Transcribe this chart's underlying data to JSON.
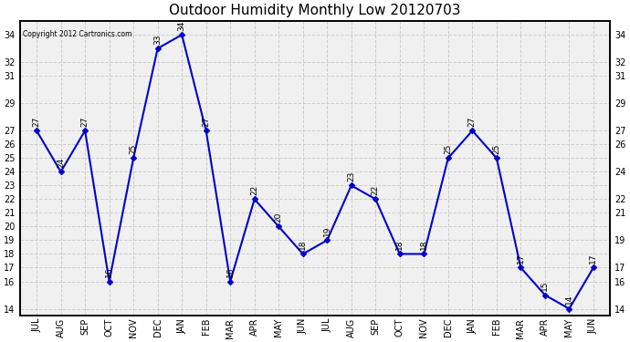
{
  "title": "Outdoor Humidity Monthly Low 20120703",
  "copyright": "Copyright 2012 Cartronics.com",
  "categories": [
    "JUL",
    "AUG",
    "SEP",
    "OCT",
    "NOV",
    "DEC",
    "JAN",
    "FEB",
    "MAR",
    "APR",
    "MAY",
    "JUN",
    "JUL",
    "AUG",
    "SEP",
    "OCT",
    "NOV",
    "DEC",
    "JAN",
    "FEB",
    "MAR",
    "APR",
    "MAY",
    "JUN"
  ],
  "values": [
    27,
    24,
    27,
    16,
    25,
    33,
    34,
    27,
    16,
    22,
    20,
    18,
    19,
    23,
    22,
    18,
    18,
    25,
    27,
    25,
    17,
    15,
    14,
    17
  ],
  "ylim": [
    13.5,
    35.0
  ],
  "yticks_left": [
    14,
    16,
    17,
    18,
    19,
    20,
    21,
    22,
    23,
    24,
    25,
    26,
    27,
    29,
    31,
    32,
    34
  ],
  "yticks_right": [
    14,
    16,
    17,
    19,
    21,
    22,
    24,
    26,
    27,
    29,
    31,
    32,
    34
  ],
  "line_color": "#0000cc",
  "marker_color": "#0000cc",
  "plot_bg_color": "#f0f0f0",
  "outer_bg_color": "#ffffff",
  "grid_color": "#cccccc",
  "title_fontsize": 11,
  "tick_fontsize": 7,
  "annot_fontsize": 6.5
}
